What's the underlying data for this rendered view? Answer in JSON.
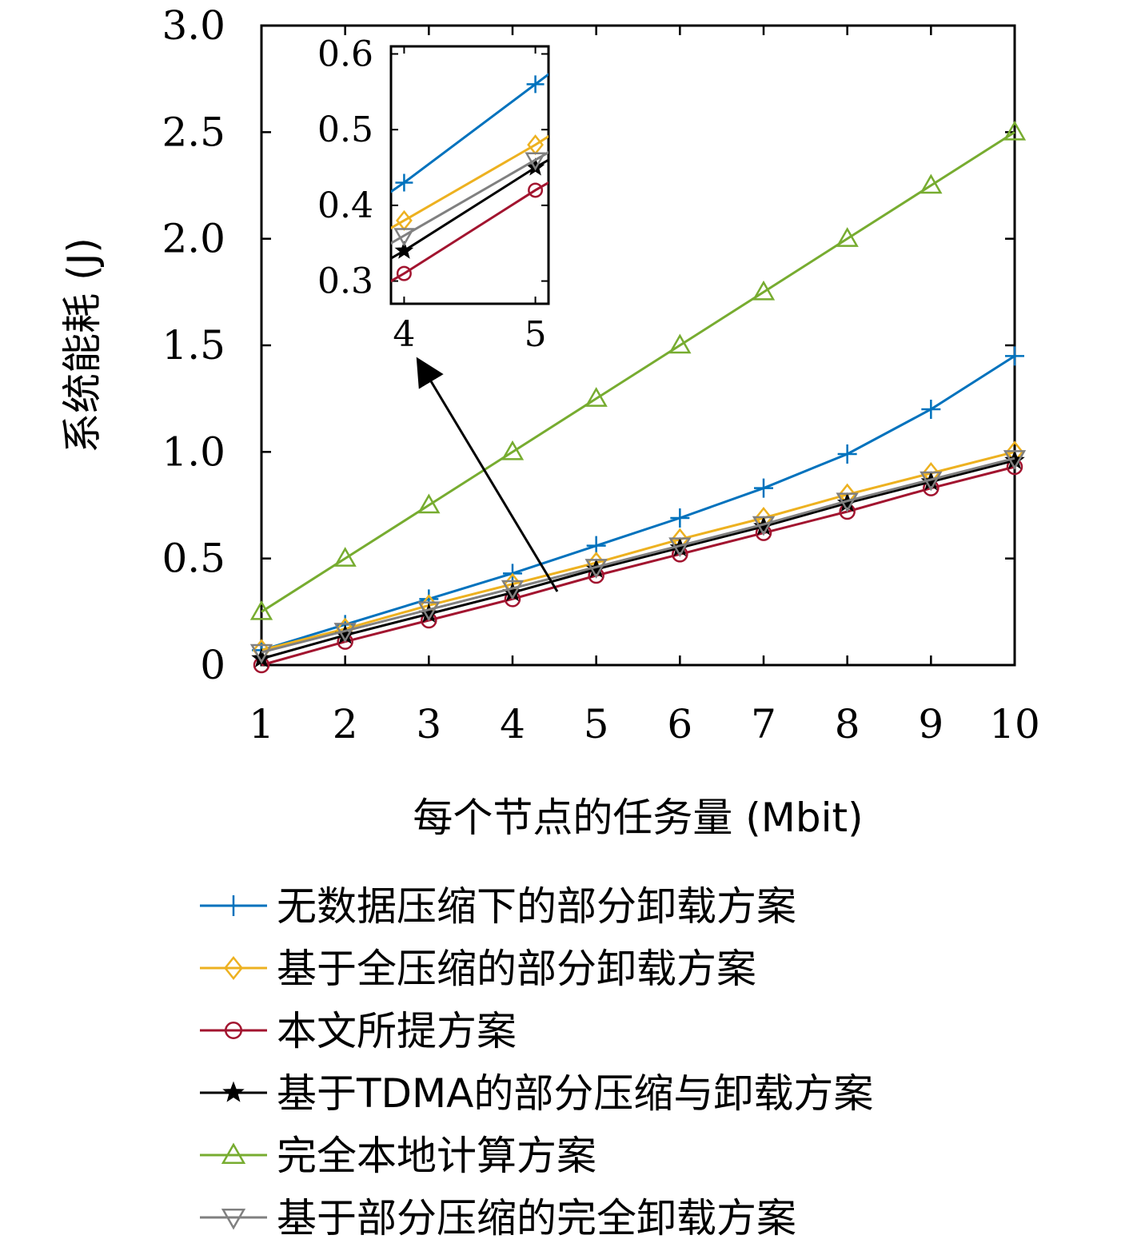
{
  "chart_data": {
    "type": "line",
    "title": "",
    "xlabel": "每个节点的任务量 (Mbit)",
    "ylabel": "系统能耗 (J)",
    "x": [
      1,
      2,
      3,
      4,
      5,
      6,
      7,
      8,
      9,
      10
    ],
    "xlim": [
      1,
      10
    ],
    "ylim": [
      0,
      3.0
    ],
    "x_ticks": [
      "1",
      "2",
      "3",
      "4",
      "5",
      "6",
      "7",
      "8",
      "9",
      "10"
    ],
    "y_ticks": [
      "0",
      "0.5",
      "1.0",
      "1.5",
      "2.0",
      "2.5",
      "3.0"
    ],
    "grid": false,
    "legend_position": "below",
    "series": [
      {
        "name": "无数据压缩下的部分卸载方案",
        "color": "#0072BD",
        "marker": "plus",
        "values": [
          0.07,
          0.19,
          0.31,
          0.43,
          0.56,
          0.69,
          0.83,
          0.99,
          1.2,
          1.45
        ]
      },
      {
        "name": "基于全压缩的部分卸载方案",
        "color": "#EDB120",
        "marker": "diamond",
        "values": [
          0.07,
          0.17,
          0.28,
          0.38,
          0.48,
          0.59,
          0.69,
          0.8,
          0.9,
          1.0
        ]
      },
      {
        "name": "本文所提方案",
        "color": "#A2142F",
        "marker": "circle",
        "values": [
          0.0,
          0.11,
          0.21,
          0.31,
          0.42,
          0.52,
          0.62,
          0.72,
          0.83,
          0.93
        ]
      },
      {
        "name": "基于TDMA的部分压缩与卸载方案",
        "color": "#000000",
        "marker": "star",
        "values": [
          0.03,
          0.14,
          0.24,
          0.34,
          0.45,
          0.55,
          0.65,
          0.76,
          0.86,
          0.96
        ]
      },
      {
        "name": "完全本地计算方案",
        "color": "#77AC30",
        "marker": "triangle-up",
        "values": [
          0.25,
          0.5,
          0.75,
          1.0,
          1.25,
          1.5,
          1.75,
          2.0,
          2.25,
          2.5
        ]
      },
      {
        "name": "基于部分压缩的完全卸载方案",
        "color": "#808080",
        "marker": "triangle-down",
        "values": [
          0.06,
          0.16,
          0.26,
          0.36,
          0.46,
          0.56,
          0.66,
          0.77,
          0.87,
          0.97
        ]
      }
    ],
    "inset": {
      "xlim": [
        3.9,
        5.1
      ],
      "ylim": [
        0.27,
        0.61
      ],
      "x_ticks": [
        "4",
        "5"
      ],
      "y_ticks": [
        "0.3",
        "0.4",
        "0.5",
        "0.6"
      ],
      "annotation": "arrow from main plot near x=4.5 pointing to zoomed inset"
    }
  }
}
